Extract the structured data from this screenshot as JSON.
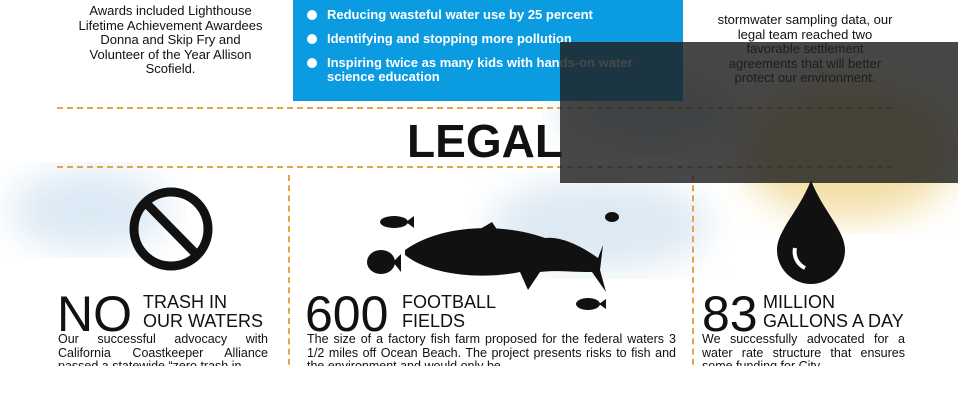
{
  "top": {
    "left_text": "Awards included Lighthouse Lifetime Achievement Awardees Donna and Skip Fry and Volunteer of the Year Allison Scofield.",
    "bullets": [
      "Reducing wasteful water use by 25 percent",
      "Identifying and stopping more pollution",
      "Inspiring twice as many kids with hands-on water science education"
    ],
    "right_text": "stormwater sampling data, our legal team reached two favorable settlement agreements that will better protect our environment."
  },
  "section_title": "LEGAL",
  "stats": [
    {
      "number": "NO",
      "label_1": "TRASH IN",
      "label_2": "OUR WATERS",
      "text": "Our successful advocacy with California Coastkeeper Alliance passed a statewide “zero trash in"
    },
    {
      "number": "600",
      "label_1": "FOOTBALL",
      "label_2": "FIELDS",
      "text": "The size of a factory fish farm proposed for the federal waters 3 1/2 miles off Ocean Beach. The project presents risks to fish and the environment and would only be"
    },
    {
      "number": "83",
      "label_1": "MILLION",
      "label_2": "GALLONS A DAY",
      "text": "We successfully advocated for a water rate structure that ensures some funding for City"
    }
  ]
}
